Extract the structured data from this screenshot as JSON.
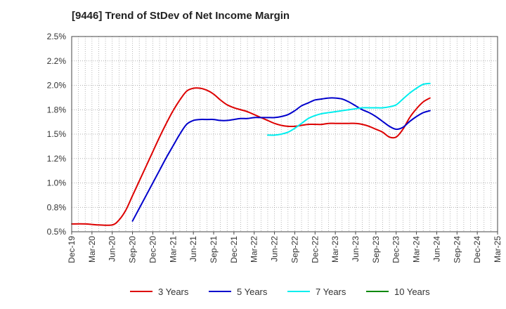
{
  "chart_data": {
    "type": "line",
    "title": "[9446]  Trend of StDev of Net Income Margin",
    "xlabel": "",
    "ylabel": "",
    "ylim": [
      0.5,
      2.5
    ],
    "y_ticks": [
      "0.5%",
      "0.8%",
      "1.0%",
      "1.2%",
      "1.5%",
      "1.8%",
      "2.0%",
      "2.2%",
      "2.5%"
    ],
    "y_tick_values": [
      0.5,
      0.75,
      1.0,
      1.25,
      1.5,
      1.75,
      2.0,
      2.25,
      2.5
    ],
    "x_ticks": [
      "Dec-19",
      "Mar-20",
      "Jun-20",
      "Sep-20",
      "Dec-20",
      "Mar-21",
      "Jun-21",
      "Sep-21",
      "Dec-21",
      "Mar-22",
      "Jun-22",
      "Sep-22",
      "Dec-22",
      "Mar-23",
      "Jun-23",
      "Sep-23",
      "Dec-23",
      "Mar-24",
      "Jun-24",
      "Sep-24",
      "Dec-24",
      "Mar-25"
    ],
    "x_range_months": [
      0,
      63
    ],
    "grid": true,
    "legend_position": "bottom",
    "series": [
      {
        "name": "3 Years",
        "color": "#dd0000",
        "points": [
          [
            0,
            0.58
          ],
          [
            2,
            0.58
          ],
          [
            4,
            0.57
          ],
          [
            6,
            0.57
          ],
          [
            7,
            0.62
          ],
          [
            8,
            0.72
          ],
          [
            9,
            0.87
          ],
          [
            10,
            1.02
          ],
          [
            11,
            1.17
          ],
          [
            12,
            1.32
          ],
          [
            13,
            1.47
          ],
          [
            14,
            1.61
          ],
          [
            15,
            1.74
          ],
          [
            16,
            1.85
          ],
          [
            17,
            1.94
          ],
          [
            18,
            1.97
          ],
          [
            19,
            1.97
          ],
          [
            20,
            1.95
          ],
          [
            21,
            1.91
          ],
          [
            22,
            1.85
          ],
          [
            23,
            1.8
          ],
          [
            24,
            1.77
          ],
          [
            25,
            1.75
          ],
          [
            26,
            1.73
          ],
          [
            27,
            1.7
          ],
          [
            28,
            1.67
          ],
          [
            29,
            1.64
          ],
          [
            30,
            1.61
          ],
          [
            31,
            1.59
          ],
          [
            32,
            1.58
          ],
          [
            33,
            1.58
          ],
          [
            34,
            1.59
          ],
          [
            35,
            1.6
          ],
          [
            36,
            1.6
          ],
          [
            37,
            1.6
          ],
          [
            38,
            1.61
          ],
          [
            39,
            1.61
          ],
          [
            40,
            1.61
          ],
          [
            41,
            1.61
          ],
          [
            42,
            1.61
          ],
          [
            43,
            1.6
          ],
          [
            44,
            1.58
          ],
          [
            45,
            1.55
          ],
          [
            46,
            1.52
          ],
          [
            47,
            1.47
          ],
          [
            48,
            1.47
          ],
          [
            49,
            1.55
          ],
          [
            50,
            1.67
          ],
          [
            51,
            1.76
          ],
          [
            52,
            1.83
          ],
          [
            53,
            1.87
          ]
        ]
      },
      {
        "name": "5 Years",
        "color": "#0000cc",
        "points": [
          [
            9,
            0.61
          ],
          [
            10,
            0.74
          ],
          [
            11,
            0.87
          ],
          [
            12,
            1.0
          ],
          [
            13,
            1.13
          ],
          [
            14,
            1.26
          ],
          [
            15,
            1.38
          ],
          [
            16,
            1.5
          ],
          [
            17,
            1.6
          ],
          [
            18,
            1.64
          ],
          [
            19,
            1.65
          ],
          [
            20,
            1.65
          ],
          [
            21,
            1.65
          ],
          [
            22,
            1.64
          ],
          [
            23,
            1.64
          ],
          [
            24,
            1.65
          ],
          [
            25,
            1.66
          ],
          [
            26,
            1.66
          ],
          [
            27,
            1.67
          ],
          [
            28,
            1.67
          ],
          [
            29,
            1.67
          ],
          [
            30,
            1.67
          ],
          [
            31,
            1.68
          ],
          [
            32,
            1.7
          ],
          [
            33,
            1.74
          ],
          [
            34,
            1.79
          ],
          [
            35,
            1.82
          ],
          [
            36,
            1.85
          ],
          [
            37,
            1.86
          ],
          [
            38,
            1.87
          ],
          [
            39,
            1.87
          ],
          [
            40,
            1.86
          ],
          [
            41,
            1.83
          ],
          [
            42,
            1.79
          ],
          [
            43,
            1.75
          ],
          [
            44,
            1.72
          ],
          [
            45,
            1.68
          ],
          [
            46,
            1.63
          ],
          [
            47,
            1.58
          ],
          [
            48,
            1.55
          ],
          [
            49,
            1.57
          ],
          [
            50,
            1.63
          ],
          [
            51,
            1.68
          ],
          [
            52,
            1.72
          ],
          [
            53,
            1.74
          ]
        ]
      },
      {
        "name": "7 Years",
        "color": "#00eeee",
        "points": [
          [
            29,
            1.49
          ],
          [
            30,
            1.49
          ],
          [
            31,
            1.5
          ],
          [
            32,
            1.52
          ],
          [
            33,
            1.56
          ],
          [
            34,
            1.61
          ],
          [
            35,
            1.66
          ],
          [
            36,
            1.69
          ],
          [
            37,
            1.71
          ],
          [
            38,
            1.72
          ],
          [
            39,
            1.73
          ],
          [
            40,
            1.74
          ],
          [
            41,
            1.75
          ],
          [
            42,
            1.76
          ],
          [
            43,
            1.77
          ],
          [
            44,
            1.77
          ],
          [
            45,
            1.77
          ],
          [
            46,
            1.77
          ],
          [
            47,
            1.78
          ],
          [
            48,
            1.8
          ],
          [
            49,
            1.86
          ],
          [
            50,
            1.92
          ],
          [
            51,
            1.97
          ],
          [
            52,
            2.01
          ],
          [
            53,
            2.02
          ]
        ]
      },
      {
        "name": "10 Years",
        "color": "#008800",
        "points": []
      }
    ]
  }
}
